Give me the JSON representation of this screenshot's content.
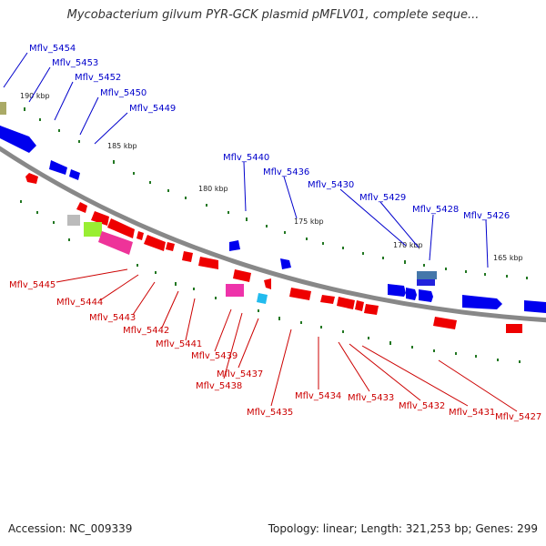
{
  "title": "Mycobacterium gilvum PYR-GCK plasmid pMFLV01, complete seque...",
  "footer": {
    "accession": "Accession: NC_009339",
    "summary": "Topology: linear; Length: 321,253 bp; Genes: 299"
  },
  "colors": {
    "forward_gene": "#0000ee",
    "reverse_gene": "#ee0000",
    "backbone": "#888888",
    "tick": "#227722",
    "top_label": "#0000cc",
    "bottom_label": "#cc0000"
  },
  "kbp_labels": [
    "190 kbp",
    "185 kbp",
    "180 kbp",
    "175 kbp",
    "170 kbp",
    "165 kbp"
  ],
  "top_genes": [
    "Mflv_5454",
    "Mflv_5453",
    "Mflv_5452",
    "Mflv_5450",
    "Mflv_5449",
    "Mflv_5440",
    "Mflv_5436",
    "Mflv_5430",
    "Mflv_5429",
    "Mflv_5428",
    "Mflv_5426"
  ],
  "bottom_genes": [
    "Mflv_5445",
    "Mflv_5444",
    "Mflv_5443",
    "Mflv_5442",
    "Mflv_5441",
    "Mflv_5439",
    "Mflv_5437",
    "Mflv_5438",
    "Mflv_5435",
    "Mflv_5434",
    "Mflv_5433",
    "Mflv_5432",
    "Mflv_5431",
    "Mflv_5427"
  ]
}
